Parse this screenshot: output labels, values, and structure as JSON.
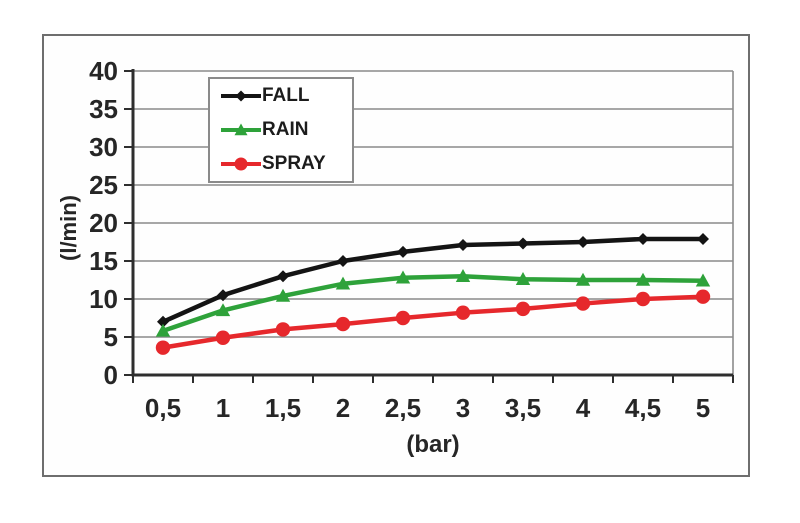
{
  "chart_data": {
    "type": "line",
    "xlabel": "(bar)",
    "ylabel": "(l/min)",
    "x": [
      0.5,
      1,
      1.5,
      2,
      2.5,
      3,
      3.5,
      4,
      4.5,
      5
    ],
    "x_tick_labels": [
      "0,5",
      "1",
      "1,5",
      "2",
      "2,5",
      "3",
      "3,5",
      "4",
      "4,5",
      "5"
    ],
    "ylim": [
      0,
      40
    ],
    "y_tick_step": 5,
    "y_tick_labels": [
      "0",
      "5",
      "10",
      "15",
      "20",
      "25",
      "30",
      "35",
      "40"
    ],
    "grid": "horizontal",
    "x_ticks_between_categories": true,
    "legend_position": "top-left-inside",
    "series": [
      {
        "name": "FALL",
        "color": "#141414",
        "marker": "diamond",
        "values": [
          7.0,
          10.5,
          13.0,
          15.0,
          16.2,
          17.1,
          17.3,
          17.5,
          17.9,
          17.9
        ]
      },
      {
        "name": "RAIN",
        "color": "#2ea23a",
        "marker": "triangle",
        "values": [
          5.8,
          8.5,
          10.4,
          12.0,
          12.8,
          13.0,
          12.6,
          12.5,
          12.5,
          12.4
        ]
      },
      {
        "name": "SPRAY",
        "color": "#e6282c",
        "marker": "circle",
        "values": [
          3.6,
          4.9,
          6.0,
          6.7,
          7.5,
          8.2,
          8.7,
          9.4,
          10.0,
          10.3
        ]
      }
    ],
    "colors": {
      "grid": "#8a8a8a",
      "axis": "#2e2e2e",
      "tick_label": "#262626",
      "frame_border": "#6e6e6e",
      "legend_border": "#8a8a8a",
      "background": "#ffffff"
    }
  }
}
